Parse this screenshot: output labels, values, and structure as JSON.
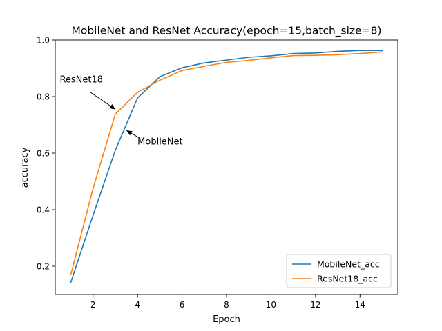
{
  "chart_data": {
    "type": "line",
    "title": "MobileNet and ResNet Accuracy(epoch=15,batch_size=8)",
    "xlabel": "Epoch",
    "ylabel": "accuracy",
    "xlim": [
      0.3,
      15.7
    ],
    "ylim": [
      0.1,
      1.0
    ],
    "xticks": [
      2,
      4,
      6,
      8,
      10,
      12,
      14
    ],
    "yticks": [
      0.2,
      0.4,
      0.6,
      0.8,
      1.0
    ],
    "xtick_labels": [
      "2",
      "4",
      "6",
      "8",
      "10",
      "12",
      "14"
    ],
    "ytick_labels": [
      "0.2",
      "0.4",
      "0.6",
      "0.8",
      "1.0"
    ],
    "grid": false,
    "legend_position": "lower-right",
    "x": [
      1,
      2,
      3,
      4,
      5,
      6,
      7,
      8,
      9,
      10,
      11,
      12,
      13,
      14,
      15
    ],
    "series": [
      {
        "name": "MobileNet_acc",
        "color": "#1f77b4",
        "values": [
          0.143,
          0.38,
          0.61,
          0.795,
          0.87,
          0.902,
          0.919,
          0.929,
          0.939,
          0.944,
          0.952,
          0.954,
          0.96,
          0.963,
          0.963
        ]
      },
      {
        "name": "ResNet18_acc",
        "color": "#ff7f0e",
        "values": [
          0.17,
          0.475,
          0.738,
          0.815,
          0.858,
          0.892,
          0.907,
          0.921,
          0.928,
          0.937,
          0.945,
          0.946,
          0.948,
          0.952,
          0.958
        ]
      }
    ],
    "annotations": [
      {
        "text": "ResNet18",
        "point": [
          3,
          0.755
        ],
        "text_at": [
          0.5,
          0.85
        ]
      },
      {
        "text": "MobileNet",
        "point": [
          3.5,
          0.68
        ],
        "text_at": [
          4.0,
          0.63
        ]
      }
    ]
  }
}
